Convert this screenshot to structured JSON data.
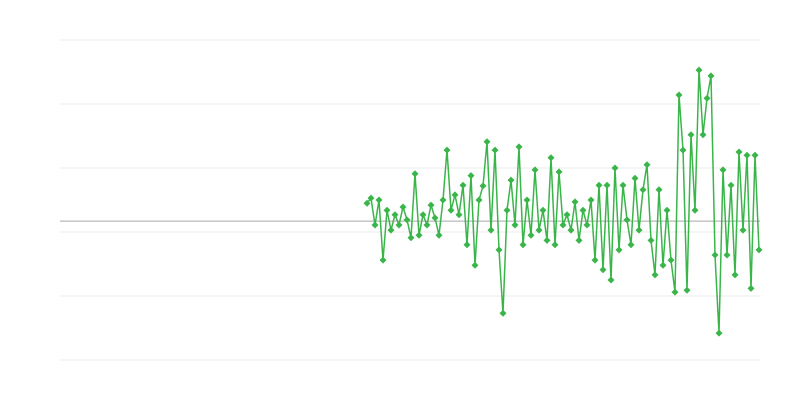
{
  "chart_data": {
    "type": "line",
    "color": "#3ab54a",
    "grid": true,
    "grid_color": "#ebebeb",
    "reference_line": {
      "value": 0.17,
      "color": "#a6a6a6"
    },
    "xlim": [
      0,
      700
    ],
    "ylim": [
      -2,
      3
    ],
    "yticks": [
      -2,
      -1,
      0,
      1,
      2,
      3
    ],
    "x": [
      307,
      311,
      315,
      319,
      323,
      327,
      331,
      335,
      339,
      343,
      347,
      351,
      355,
      359,
      363,
      367,
      371,
      375,
      379,
      383,
      387,
      391,
      395,
      399,
      403,
      407,
      411,
      415,
      419,
      423,
      427,
      431,
      435,
      439,
      443,
      447,
      451,
      455,
      459,
      463,
      467,
      471,
      475,
      479,
      483,
      487,
      491,
      495,
      499,
      503,
      507,
      511,
      515,
      519,
      523,
      527,
      531,
      535,
      539,
      543,
      547,
      551,
      555,
      559,
      563,
      567,
      571,
      575,
      579,
      583,
      587,
      591,
      595,
      599,
      603,
      607,
      611,
      615,
      619,
      623,
      627,
      631,
      635,
      639,
      643,
      647,
      651,
      655,
      659,
      663,
      667,
      671,
      675,
      679,
      683,
      687,
      691,
      695,
      699
    ],
    "values": [
      0.45,
      0.53,
      0.11,
      0.5,
      -0.44,
      0.34,
      0.03,
      0.27,
      0.11,
      0.39,
      0.19,
      -0.09,
      0.91,
      -0.05,
      0.27,
      0.11,
      0.42,
      0.22,
      -0.05,
      0.5,
      1.28,
      0.34,
      0.58,
      0.27,
      0.73,
      -0.2,
      0.88,
      -0.52,
      0.5,
      0.72,
      1.41,
      0.03,
      1.28,
      -0.28,
      -1.27,
      0.34,
      0.81,
      0.11,
      1.33,
      -0.2,
      0.5,
      -0.05,
      0.97,
      0.03,
      0.34,
      -0.13,
      1.16,
      -0.2,
      0.94,
      0.11,
      0.27,
      0.03,
      0.47,
      -0.13,
      0.34,
      0.11,
      0.5,
      -0.44,
      0.73,
      -0.59,
      0.73,
      -0.75,
      1.0,
      -0.28,
      0.73,
      0.19,
      -0.2,
      0.84,
      0.03,
      0.66,
      1.05,
      -0.13,
      -0.67,
      0.66,
      -0.52,
      0.34,
      -0.44,
      -0.94,
      2.14,
      1.28,
      -0.91,
      1.52,
      0.34,
      2.53,
      1.52,
      2.09,
      2.44,
      -0.36,
      -1.58,
      0.97,
      -0.36,
      0.73,
      -0.67,
      1.25,
      0.03,
      1.2,
      -0.88,
      1.2,
      -0.28
    ]
  }
}
